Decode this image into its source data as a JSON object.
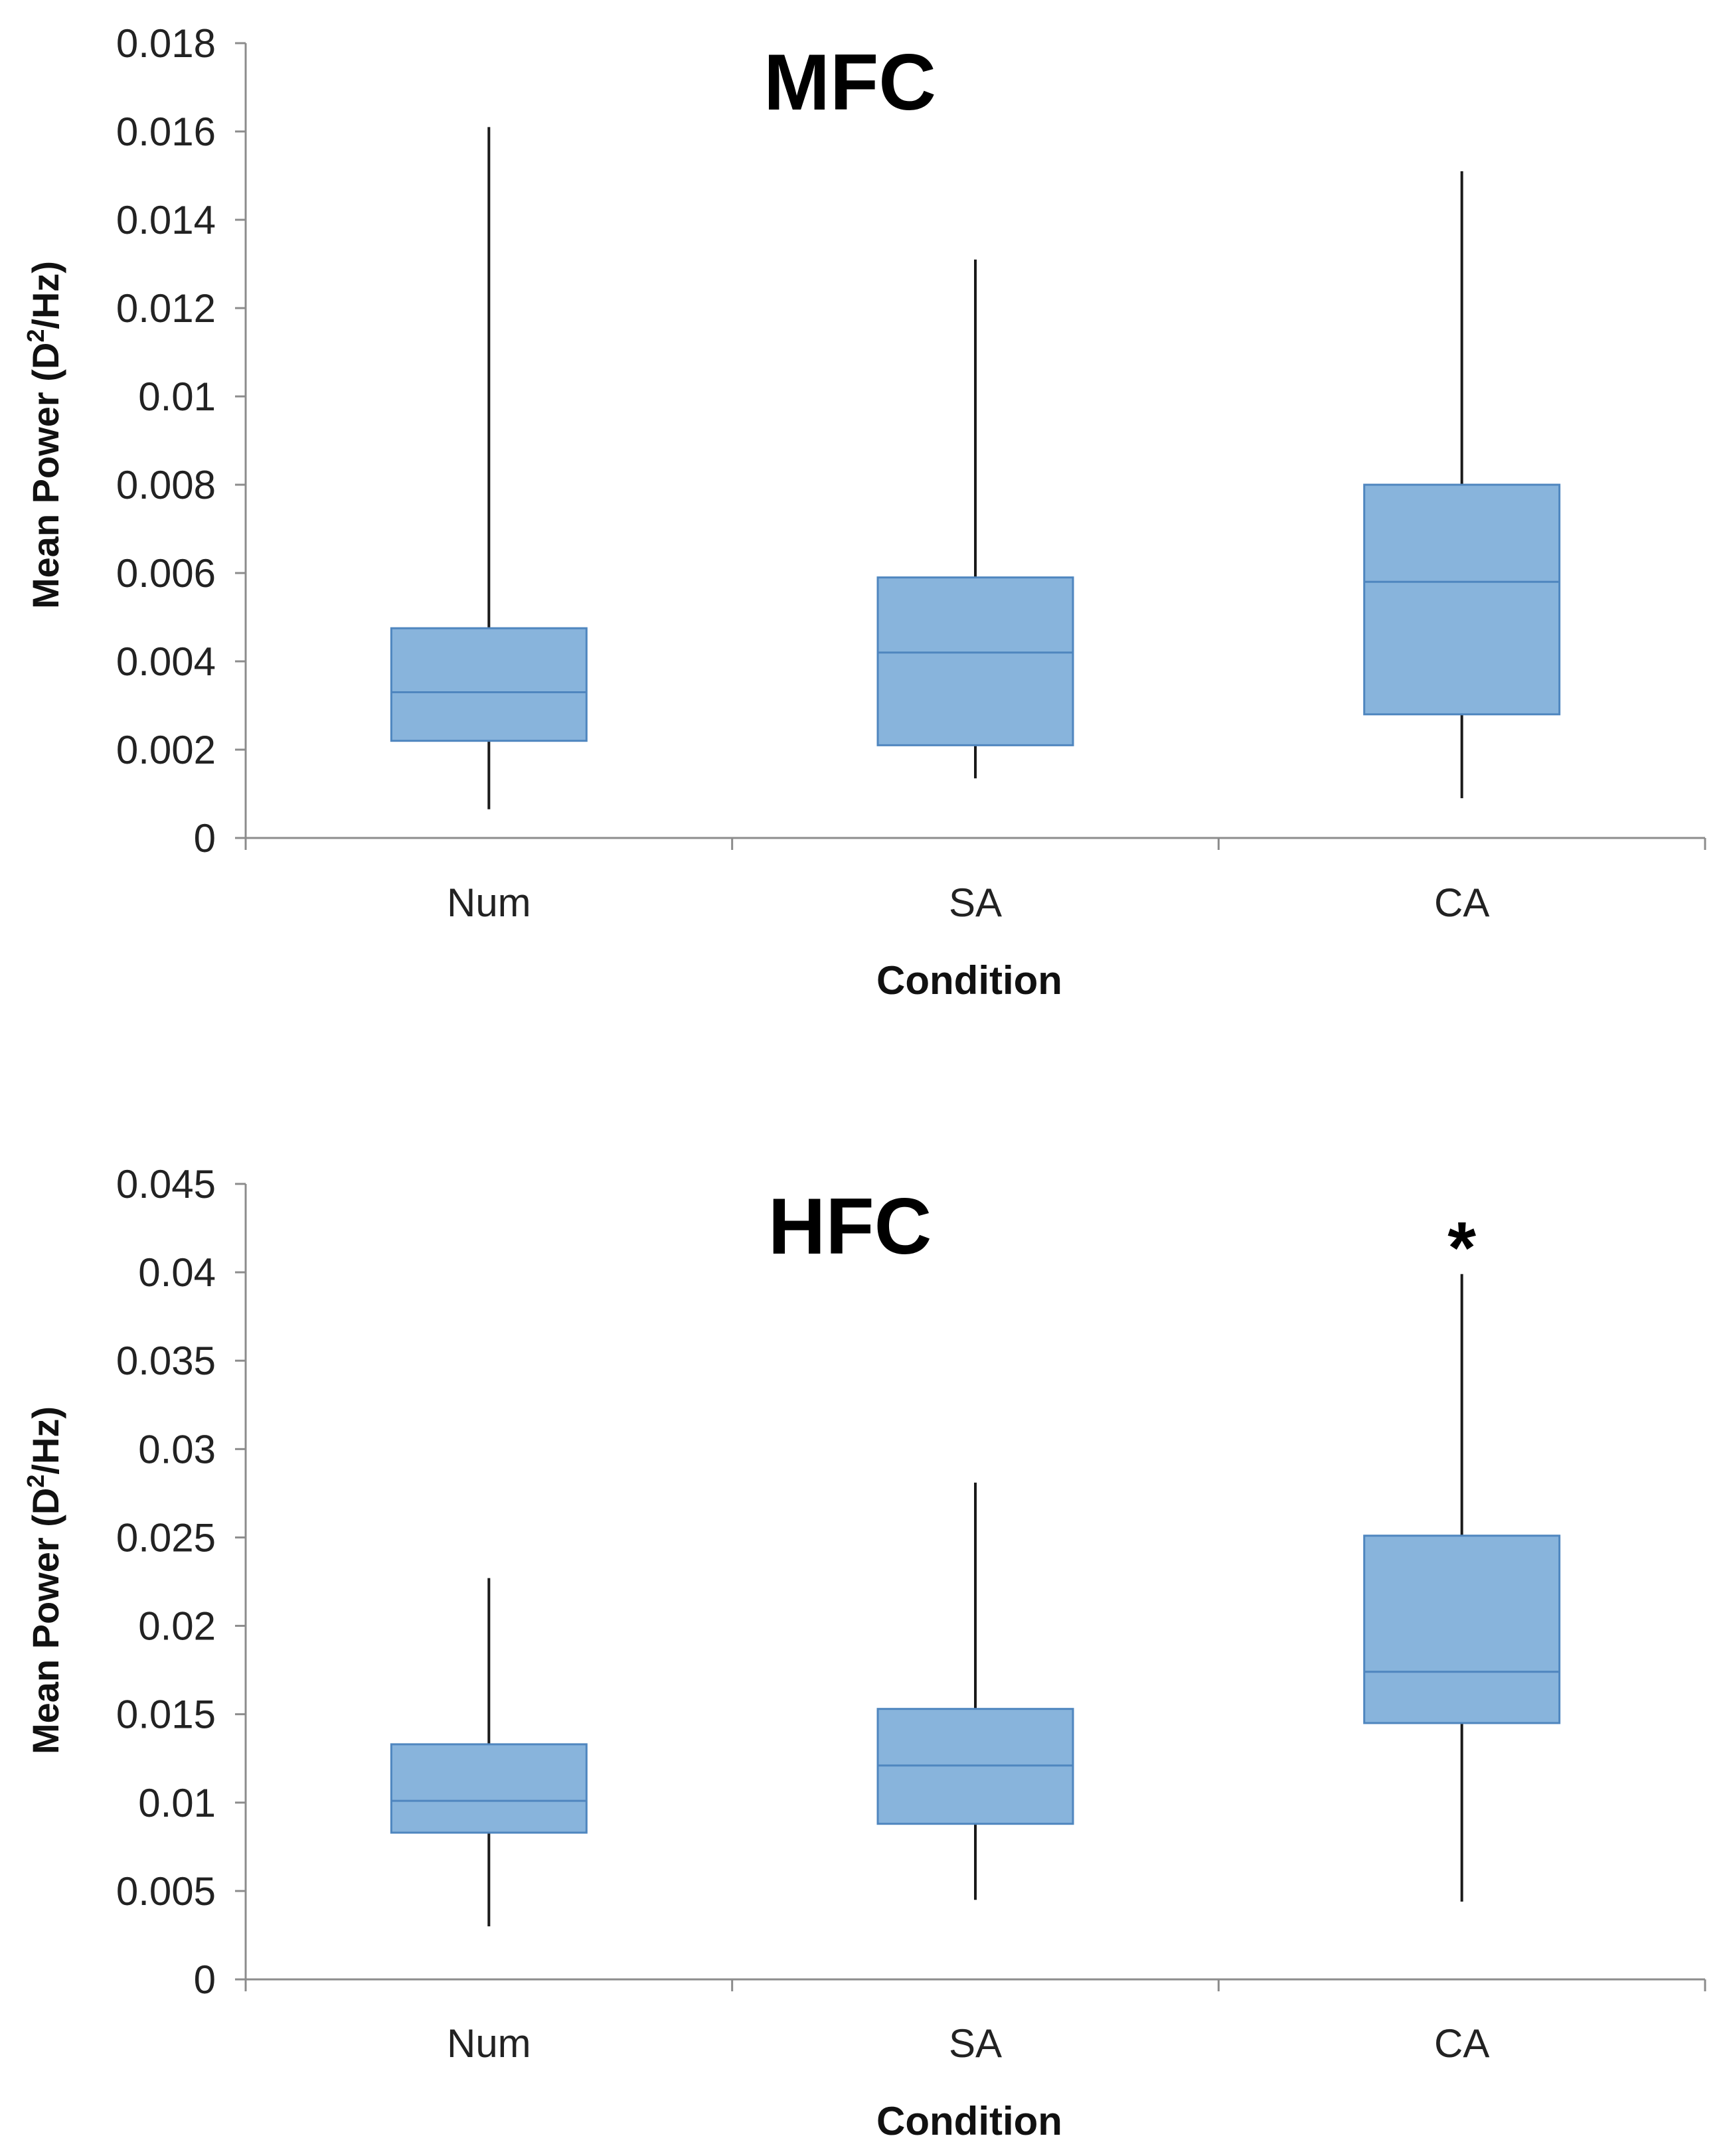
{
  "chart_data": [
    {
      "type": "boxplot",
      "title": "MFC",
      "xlabel": "Condition",
      "ylabel": "Mean Power (D",
      "ylabel_sup": "2",
      "ylabel_tail": "/Hz)",
      "ylim": [
        0,
        0.018
      ],
      "yticks": [
        "0",
        "0.002",
        "0.004",
        "0.006",
        "0.008",
        "0.01",
        "0.012",
        "0.014",
        "0.016",
        "0.018"
      ],
      "categories": [
        "Num",
        "SA",
        "CA"
      ],
      "boxes": [
        {
          "min": 0.00065,
          "q1": 0.0022,
          "median": 0.0033,
          "q3": 0.00475,
          "max": 0.0161
        },
        {
          "min": 0.00135,
          "q1": 0.0021,
          "median": 0.0042,
          "q3": 0.0059,
          "max": 0.0131
        },
        {
          "min": 0.0009,
          "q1": 0.0028,
          "median": 0.0058,
          "q3": 0.008,
          "max": 0.0151
        }
      ],
      "annotations": []
    },
    {
      "type": "boxplot",
      "title": "HFC",
      "xlabel": "Condition",
      "ylabel": "Mean Power (D",
      "ylabel_sup": "2",
      "ylabel_tail": "/Hz)",
      "ylim": [
        0,
        0.045
      ],
      "yticks": [
        "0",
        "0.005",
        "0.01",
        "0.015",
        "0.02",
        "0.025",
        "0.03",
        "0.035",
        "0.04",
        "0.045"
      ],
      "categories": [
        "Num",
        "SA",
        "CA"
      ],
      "boxes": [
        {
          "min": 0.003,
          "q1": 0.0083,
          "median": 0.0101,
          "q3": 0.0133,
          "max": 0.0227
        },
        {
          "min": 0.0045,
          "q1": 0.0088,
          "median": 0.0121,
          "q3": 0.0153,
          "max": 0.0281
        },
        {
          "min": 0.0044,
          "q1": 0.0145,
          "median": 0.0174,
          "q3": 0.0251,
          "max": 0.0399
        }
      ],
      "annotations": [
        {
          "category": "CA",
          "text": "*"
        }
      ]
    }
  ]
}
